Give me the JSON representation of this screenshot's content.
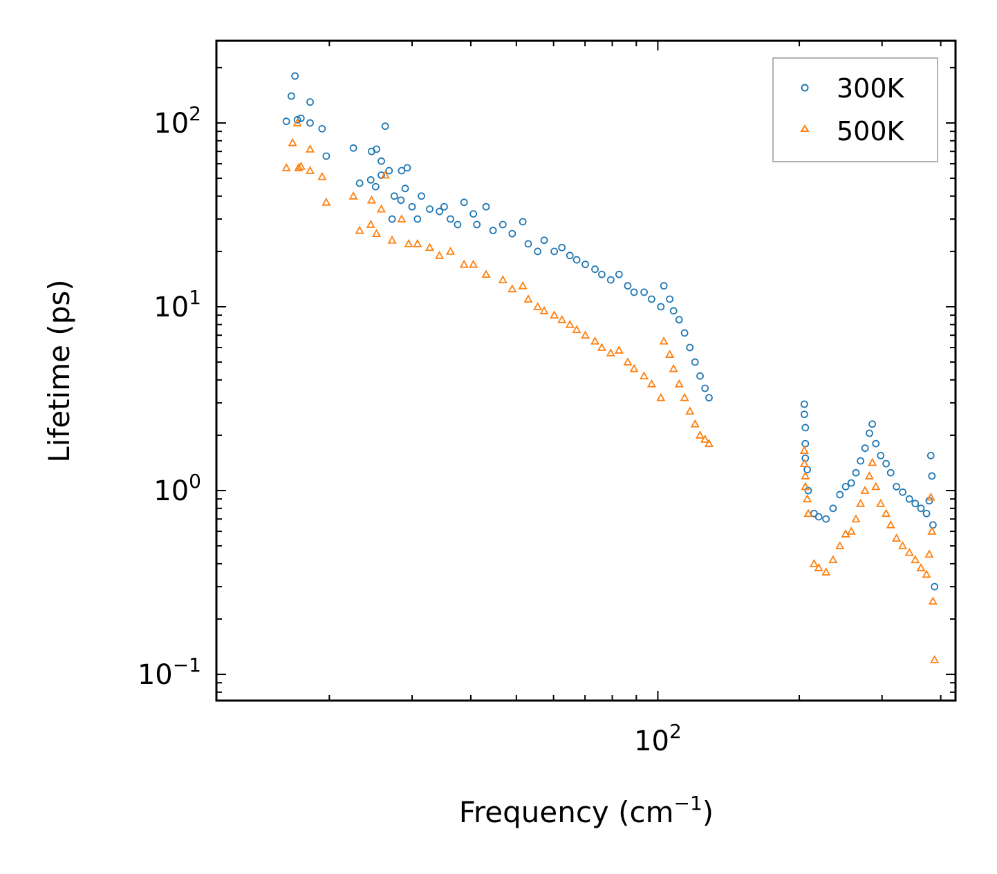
{
  "chart_data": {
    "type": "scatter",
    "x_scale": "log",
    "y_scale": "log",
    "xlabel": "Frequency (cm",
    "xlabel_sup": "−1",
    "xlabel_tail": ")",
    "ylabel": "Lifetime (ps)",
    "xlim": [
      11.5,
      430
    ],
    "ylim": [
      0.072,
      280
    ],
    "x_major_ticks": [
      {
        "value": 100,
        "base": "10",
        "exp": "2"
      }
    ],
    "y_major_ticks": [
      {
        "value": 100,
        "base": "10",
        "exp": "2"
      },
      {
        "value": 10,
        "base": "10",
        "exp": "1"
      },
      {
        "value": 1,
        "base": "10",
        "exp": "0"
      },
      {
        "value": 0.1,
        "base": "10",
        "exp": "−1"
      }
    ],
    "legend_position": "top-right",
    "series": [
      {
        "name": "300K",
        "marker": "circle",
        "color": "#1f77b4",
        "points": [
          [
            16.2,
            102
          ],
          [
            16.6,
            140
          ],
          [
            16.9,
            180
          ],
          [
            17.1,
            104
          ],
          [
            17.4,
            106
          ],
          [
            18.2,
            130
          ],
          [
            18.2,
            100
          ],
          [
            19.3,
            93
          ],
          [
            19.7,
            66
          ],
          [
            22.5,
            73
          ],
          [
            23.2,
            47
          ],
          [
            24.5,
            49
          ],
          [
            24.6,
            70
          ],
          [
            25.2,
            72
          ],
          [
            25.1,
            45
          ],
          [
            25.8,
            62
          ],
          [
            26.3,
            96
          ],
          [
            25.8,
            52
          ],
          [
            27.5,
            40
          ],
          [
            28.5,
            55
          ],
          [
            29.3,
            57
          ],
          [
            26.8,
            55
          ],
          [
            27.2,
            30
          ],
          [
            28.4,
            38
          ],
          [
            29.0,
            44
          ],
          [
            30.0,
            35
          ],
          [
            30.8,
            30
          ],
          [
            31.4,
            40
          ],
          [
            32.7,
            34
          ],
          [
            34.3,
            33
          ],
          [
            35.1,
            35
          ],
          [
            36.2,
            30
          ],
          [
            37.5,
            28
          ],
          [
            38.7,
            37
          ],
          [
            40.5,
            32
          ],
          [
            41.2,
            28
          ],
          [
            43.1,
            35
          ],
          [
            44.6,
            26
          ],
          [
            46.8,
            28
          ],
          [
            49.0,
            25
          ],
          [
            51.6,
            29
          ],
          [
            53.0,
            22
          ],
          [
            55.5,
            20
          ],
          [
            57.3,
            23
          ],
          [
            60.2,
            20
          ],
          [
            62.5,
            21
          ],
          [
            65.0,
            19
          ],
          [
            67.2,
            18
          ],
          [
            70.1,
            17
          ],
          [
            73.5,
            16
          ],
          [
            76.0,
            15
          ],
          [
            79.4,
            14
          ],
          [
            82.7,
            15
          ],
          [
            86.3,
            13
          ],
          [
            89.0,
            12
          ],
          [
            93.5,
            12
          ],
          [
            97.0,
            11
          ],
          [
            101.5,
            10
          ],
          [
            103.0,
            13
          ],
          [
            106.0,
            11
          ],
          [
            108.0,
            9.5
          ],
          [
            111.0,
            8.5
          ],
          [
            114.0,
            7.2
          ],
          [
            117.0,
            6.0
          ],
          [
            120.0,
            5.0
          ],
          [
            123.0,
            4.2
          ],
          [
            126.0,
            3.6
          ],
          [
            128.5,
            3.2
          ],
          [
            205,
            2.95
          ],
          [
            205,
            2.6
          ],
          [
            206,
            2.2
          ],
          [
            206,
            1.8
          ],
          [
            206,
            1.5
          ],
          [
            208,
            1.3
          ],
          [
            209,
            1.0
          ],
          [
            215,
            0.75
          ],
          [
            220,
            0.72
          ],
          [
            228,
            0.7
          ],
          [
            236,
            0.8
          ],
          [
            244,
            0.95
          ],
          [
            251,
            1.05
          ],
          [
            258,
            1.1
          ],
          [
            264,
            1.25
          ],
          [
            270,
            1.45
          ],
          [
            276,
            1.7
          ],
          [
            282,
            2.05
          ],
          [
            286,
            2.3
          ],
          [
            291,
            1.8
          ],
          [
            298,
            1.55
          ],
          [
            306,
            1.4
          ],
          [
            313,
            1.25
          ],
          [
            322,
            1.05
          ],
          [
            332,
            0.98
          ],
          [
            343,
            0.9
          ],
          [
            353,
            0.85
          ],
          [
            363,
            0.8
          ],
          [
            373,
            0.75
          ],
          [
            378,
            0.88
          ],
          [
            381,
            1.55
          ],
          [
            383,
            1.2
          ],
          [
            385,
            0.65
          ],
          [
            388,
            0.3
          ]
        ]
      },
      {
        "name": "500K",
        "marker": "triangle",
        "color": "#ff7f0e",
        "points": [
          [
            16.2,
            57
          ],
          [
            16.7,
            78
          ],
          [
            17.1,
            100
          ],
          [
            17.4,
            58
          ],
          [
            17.2,
            57
          ],
          [
            18.2,
            72
          ],
          [
            18.2,
            55
          ],
          [
            19.3,
            51
          ],
          [
            19.7,
            37
          ],
          [
            22.5,
            40
          ],
          [
            23.2,
            26
          ],
          [
            24.5,
            28
          ],
          [
            24.6,
            38
          ],
          [
            25.2,
            25
          ],
          [
            25.8,
            34
          ],
          [
            26.3,
            52
          ],
          [
            27.2,
            23
          ],
          [
            28.5,
            30
          ],
          [
            29.5,
            22
          ],
          [
            30.8,
            22
          ],
          [
            32.7,
            21
          ],
          [
            34.3,
            19
          ],
          [
            36.2,
            20
          ],
          [
            38.7,
            17
          ],
          [
            40.5,
            17
          ],
          [
            43.1,
            15
          ],
          [
            46.8,
            14
          ],
          [
            49.0,
            12.5
          ],
          [
            51.6,
            13
          ],
          [
            53.0,
            11
          ],
          [
            55.5,
            10
          ],
          [
            57.3,
            9.5
          ],
          [
            60.2,
            9.0
          ],
          [
            62.5,
            8.5
          ],
          [
            65.0,
            8.0
          ],
          [
            67.2,
            7.5
          ],
          [
            70.1,
            7.0
          ],
          [
            73.5,
            6.5
          ],
          [
            76.0,
            6.0
          ],
          [
            79.4,
            5.6
          ],
          [
            82.7,
            5.8
          ],
          [
            86.3,
            5.0
          ],
          [
            89.0,
            4.6
          ],
          [
            93.5,
            4.2
          ],
          [
            97.0,
            3.8
          ],
          [
            101.5,
            3.2
          ],
          [
            103.0,
            6.5
          ],
          [
            106.0,
            5.5
          ],
          [
            108.0,
            4.6
          ],
          [
            111.0,
            3.8
          ],
          [
            114.0,
            3.2
          ],
          [
            117.0,
            2.7
          ],
          [
            120.0,
            2.3
          ],
          [
            123.0,
            2.0
          ],
          [
            126.0,
            1.9
          ],
          [
            128.5,
            1.8
          ],
          [
            205,
            1.65
          ],
          [
            205,
            1.4
          ],
          [
            206,
            1.2
          ],
          [
            206,
            1.05
          ],
          [
            208,
            0.9
          ],
          [
            209,
            0.75
          ],
          [
            215,
            0.4
          ],
          [
            220,
            0.38
          ],
          [
            228,
            0.36
          ],
          [
            236,
            0.42
          ],
          [
            244,
            0.5
          ],
          [
            251,
            0.58
          ],
          [
            258,
            0.6
          ],
          [
            264,
            0.7
          ],
          [
            270,
            0.85
          ],
          [
            276,
            1.0
          ],
          [
            282,
            1.2
          ],
          [
            286,
            1.42
          ],
          [
            291,
            1.05
          ],
          [
            298,
            0.85
          ],
          [
            306,
            0.75
          ],
          [
            313,
            0.65
          ],
          [
            322,
            0.55
          ],
          [
            332,
            0.5
          ],
          [
            343,
            0.46
          ],
          [
            353,
            0.42
          ],
          [
            363,
            0.38
          ],
          [
            373,
            0.35
          ],
          [
            378,
            0.45
          ],
          [
            381,
            0.92
          ],
          [
            383,
            0.6
          ],
          [
            385,
            0.25
          ],
          [
            388,
            0.12
          ]
        ]
      }
    ]
  }
}
